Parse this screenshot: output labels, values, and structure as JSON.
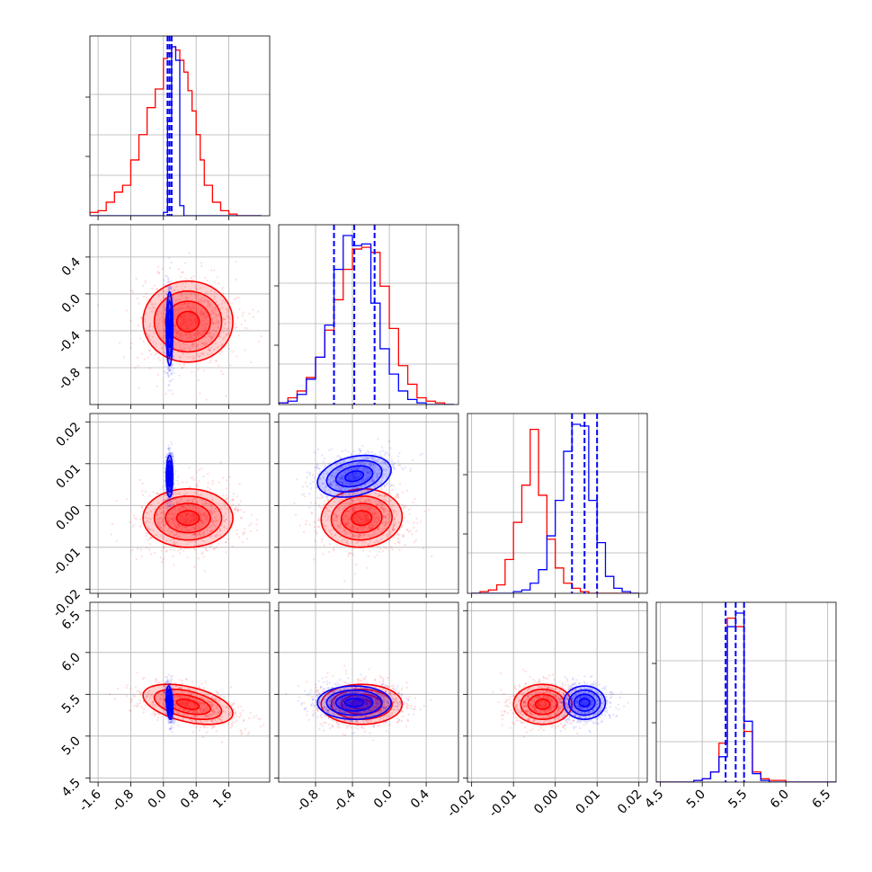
{
  "chart_data": {
    "type": "corner",
    "grid": true,
    "parameters": 4,
    "series": [
      {
        "name": "",
        "color": "#ff0000",
        "means": [
          0.6,
          -0.3,
          -0.003,
          5.38
        ],
        "sigmas": [
          0.55,
          0.22,
          0.0035,
          0.12
        ],
        "correlations": {
          "0-3": -0.45,
          "1-2": 0.05,
          "0-1": 0.0
        }
      },
      {
        "name": "",
        "color": "#0000ff",
        "means": [
          0.15,
          -0.38,
          0.007,
          5.4
        ],
        "sigmas": [
          0.04,
          0.2,
          0.0025,
          0.1
        ],
        "correlations": {
          "1-2": 0.3,
          "0-3": -0.3
        },
        "quantiles": [
          [
            0.1,
            0.15,
            0.2
          ],
          [
            -0.6,
            -0.38,
            -0.16
          ],
          [
            0.004,
            0.007,
            0.01
          ],
          [
            5.28,
            5.4,
            5.5
          ]
        ]
      }
    ],
    "histograms": [
      {
        "bins": [
          -2.0,
          -1.8,
          -1.6,
          -1.4,
          -1.2,
          -1.0,
          -0.8,
          -0.6,
          -0.4,
          -0.2,
          0.0,
          0.1,
          0.2,
          0.3,
          0.4,
          0.5,
          0.6,
          0.7,
          0.8,
          0.9,
          1.0,
          1.2,
          1.4,
          1.6,
          1.8,
          2.0,
          2.2,
          2.4
        ],
        "red": [
          0.01,
          0.02,
          0.03,
          0.08,
          0.14,
          0.18,
          0.33,
          0.48,
          0.64,
          0.75,
          0.93,
          0.96,
          1.0,
          0.98,
          0.92,
          0.85,
          0.74,
          0.62,
          0.48,
          0.33,
          0.18,
          0.08,
          0.03,
          0.01,
          0.0,
          0.0,
          0.0
        ],
        "blue": [
          0,
          0,
          0,
          0,
          0,
          0,
          0,
          0,
          0,
          0,
          0.02,
          0.56,
          1.0,
          0.92,
          0.06,
          0,
          0,
          0,
          0,
          0,
          0,
          0,
          0,
          0,
          0,
          0,
          0
        ]
      },
      {
        "bins": [
          -1.2,
          -1.1,
          -1.0,
          -0.9,
          -0.8,
          -0.7,
          -0.6,
          -0.5,
          -0.4,
          -0.3,
          -0.2,
          -0.1,
          0.0,
          0.1,
          0.2,
          0.3,
          0.4,
          0.5,
          0.6,
          0.7
        ],
        "red": [
          0.01,
          0.04,
          0.08,
          0.16,
          0.28,
          0.44,
          0.62,
          0.8,
          0.92,
          0.93,
          0.9,
          0.7,
          0.45,
          0.23,
          0.12,
          0.04,
          0.02,
          0.01,
          0.0
        ],
        "blue": [
          0.01,
          0.02,
          0.06,
          0.15,
          0.28,
          0.47,
          0.8,
          1.0,
          0.94,
          0.95,
          0.6,
          0.33,
          0.18,
          0.08,
          0.03,
          0.01,
          0.0,
          0.0,
          0.0
        ]
      },
      {
        "bins": [
          -0.02,
          -0.018,
          -0.016,
          -0.014,
          -0.012,
          -0.01,
          -0.008,
          -0.006,
          -0.004,
          -0.002,
          0.0,
          0.002,
          0.004,
          0.006,
          0.008,
          0.01,
          0.012,
          0.014,
          0.016,
          0.018,
          0.02
        ],
        "red": [
          0.0,
          0.01,
          0.02,
          0.05,
          0.2,
          0.42,
          0.64,
          0.97,
          0.58,
          0.32,
          0.15,
          0.06,
          0.03,
          0.01,
          0.0,
          0.0,
          0.0,
          0.0,
          0.0,
          0.0
        ],
        "blue": [
          0.0,
          0.0,
          0.0,
          0.0,
          0.0,
          0.01,
          0.02,
          0.06,
          0.14,
          0.34,
          0.55,
          0.84,
          1.0,
          0.99,
          0.55,
          0.3,
          0.1,
          0.03,
          0.01,
          0.0
        ]
      },
      {
        "bins": [
          4.4,
          4.5,
          4.6,
          4.7,
          4.8,
          4.9,
          5.0,
          5.1,
          5.2,
          5.3,
          5.4,
          5.5,
          5.6,
          5.7,
          5.8,
          5.9,
          6.0,
          6.1,
          6.2,
          6.3,
          6.4,
          6.5,
          6.6
        ],
        "red": [
          0.0,
          0.0,
          0.0,
          0.0,
          0.0,
          0.01,
          0.02,
          0.06,
          0.23,
          0.97,
          0.92,
          0.3,
          0.06,
          0.02,
          0.01,
          0.01,
          0.0,
          0.0,
          0.0,
          0.0,
          0.0,
          0.0
        ],
        "blue": [
          0.0,
          0.0,
          0.0,
          0.0,
          0.0,
          0.01,
          0.02,
          0.06,
          0.15,
          0.92,
          1.0,
          0.36,
          0.05,
          0.01,
          0.0,
          0.0,
          0.0,
          0.0,
          0.0,
          0.0,
          0.0,
          0.0
        ]
      }
    ],
    "axes": [
      {
        "range": [
          -1.8,
          2.6
        ],
        "ticks": [
          "-1.6",
          "-0.8",
          "0.0",
          "0.8",
          "1.6"
        ],
        "tick_values": [
          -1.6,
          -0.8,
          0.0,
          0.8,
          1.6
        ]
      },
      {
        "range": [
          -1.2,
          0.75
        ],
        "ticks": [
          "-0.8",
          "-0.4",
          "0.0",
          "0.4"
        ],
        "tick_values": [
          -0.8,
          -0.4,
          0.0,
          0.4
        ]
      },
      {
        "range": [
          -0.021,
          0.022
        ],
        "ticks": [
          "-0.02",
          "-0.01",
          "0.00",
          "0.01",
          "0.02"
        ],
        "tick_values": [
          -0.02,
          -0.01,
          0.0,
          0.01,
          0.02
        ]
      },
      {
        "range": [
          4.45,
          6.6
        ],
        "ticks": [
          "4.5",
          "5.0",
          "5.5",
          "6.0",
          "6.5"
        ],
        "tick_values": [
          4.5,
          5.0,
          5.5,
          6.0,
          6.5
        ]
      }
    ],
    "xlabels": [
      "",
      "",
      "",
      ""
    ],
    "ylabels": [
      "",
      "",
      "",
      ""
    ]
  }
}
